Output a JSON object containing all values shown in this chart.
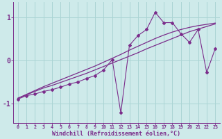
{
  "x_data": [
    0,
    1,
    2,
    3,
    4,
    5,
    6,
    7,
    8,
    9,
    10,
    11,
    12,
    13,
    14,
    15,
    16,
    17,
    18,
    19,
    20,
    21,
    22,
    23
  ],
  "y_main": [
    -0.9,
    -0.82,
    -0.78,
    -0.72,
    -0.68,
    -0.62,
    -0.55,
    -0.5,
    -0.42,
    -0.35,
    -0.22,
    0.02,
    -1.22,
    0.35,
    0.58,
    0.72,
    1.12,
    0.88,
    0.88,
    0.62,
    0.42,
    0.72,
    -0.28,
    0.28
  ],
  "y_line1": [
    -0.88,
    -0.8,
    -0.72,
    -0.64,
    -0.58,
    -0.51,
    -0.44,
    -0.37,
    -0.3,
    -0.22,
    -0.14,
    -0.06,
    0.02,
    0.1,
    0.18,
    0.27,
    0.35,
    0.43,
    0.51,
    0.59,
    0.67,
    0.73,
    0.79,
    0.85
  ],
  "y_line2": [
    -0.88,
    -0.79,
    -0.7,
    -0.61,
    -0.53,
    -0.45,
    -0.37,
    -0.29,
    -0.21,
    -0.13,
    -0.04,
    0.05,
    0.14,
    0.24,
    0.33,
    0.42,
    0.51,
    0.59,
    0.66,
    0.72,
    0.77,
    0.81,
    0.84,
    0.87
  ],
  "color": "#7B2D8B",
  "bg_color": "#ceeaea",
  "grid_color": "#aad4d4",
  "xlim": [
    -0.5,
    23.5
  ],
  "ylim": [
    -1.45,
    1.35
  ],
  "xlabel": "Windchill (Refroidissement éolien,°C)",
  "yticks": [
    -1,
    0,
    1
  ],
  "xticks": [
    0,
    1,
    2,
    3,
    4,
    5,
    6,
    7,
    8,
    9,
    10,
    11,
    12,
    13,
    14,
    15,
    16,
    17,
    18,
    19,
    20,
    21,
    22,
    23
  ]
}
